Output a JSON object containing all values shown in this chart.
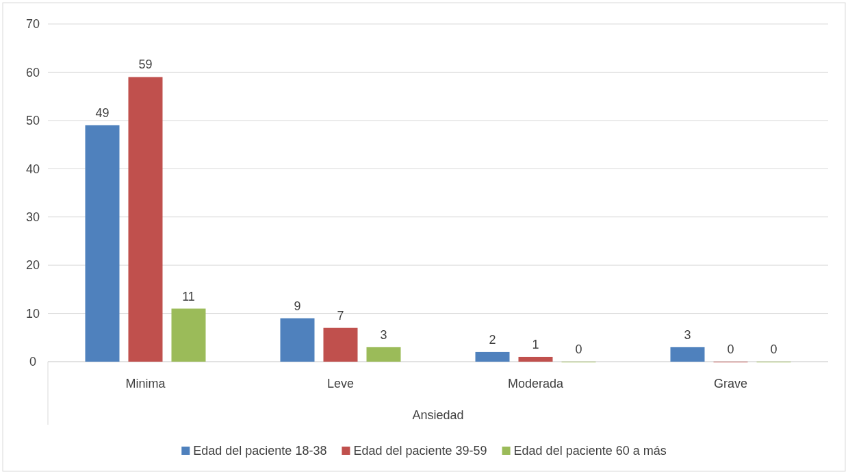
{
  "chart_data": {
    "type": "bar",
    "xlabel": "Ansiedad",
    "categories": [
      "Minima",
      "Leve",
      "Moderada",
      "Grave"
    ],
    "series": [
      {
        "name": "Edad del paciente 18-38",
        "color": "#4f81bd",
        "values": [
          49,
          9,
          2,
          3
        ]
      },
      {
        "name": "Edad del paciente 39-59",
        "color": "#c0504d",
        "values": [
          59,
          7,
          1,
          0
        ]
      },
      {
        "name": "Edad del paciente 60 a más",
        "color": "#9bbb59",
        "values": [
          11,
          3,
          0,
          0
        ]
      }
    ],
    "ylim": [
      0,
      70
    ],
    "yticks": [
      0,
      10,
      20,
      30,
      40,
      50,
      60,
      70
    ],
    "grid": "y",
    "legend": "bottom",
    "data_labels": true
  }
}
